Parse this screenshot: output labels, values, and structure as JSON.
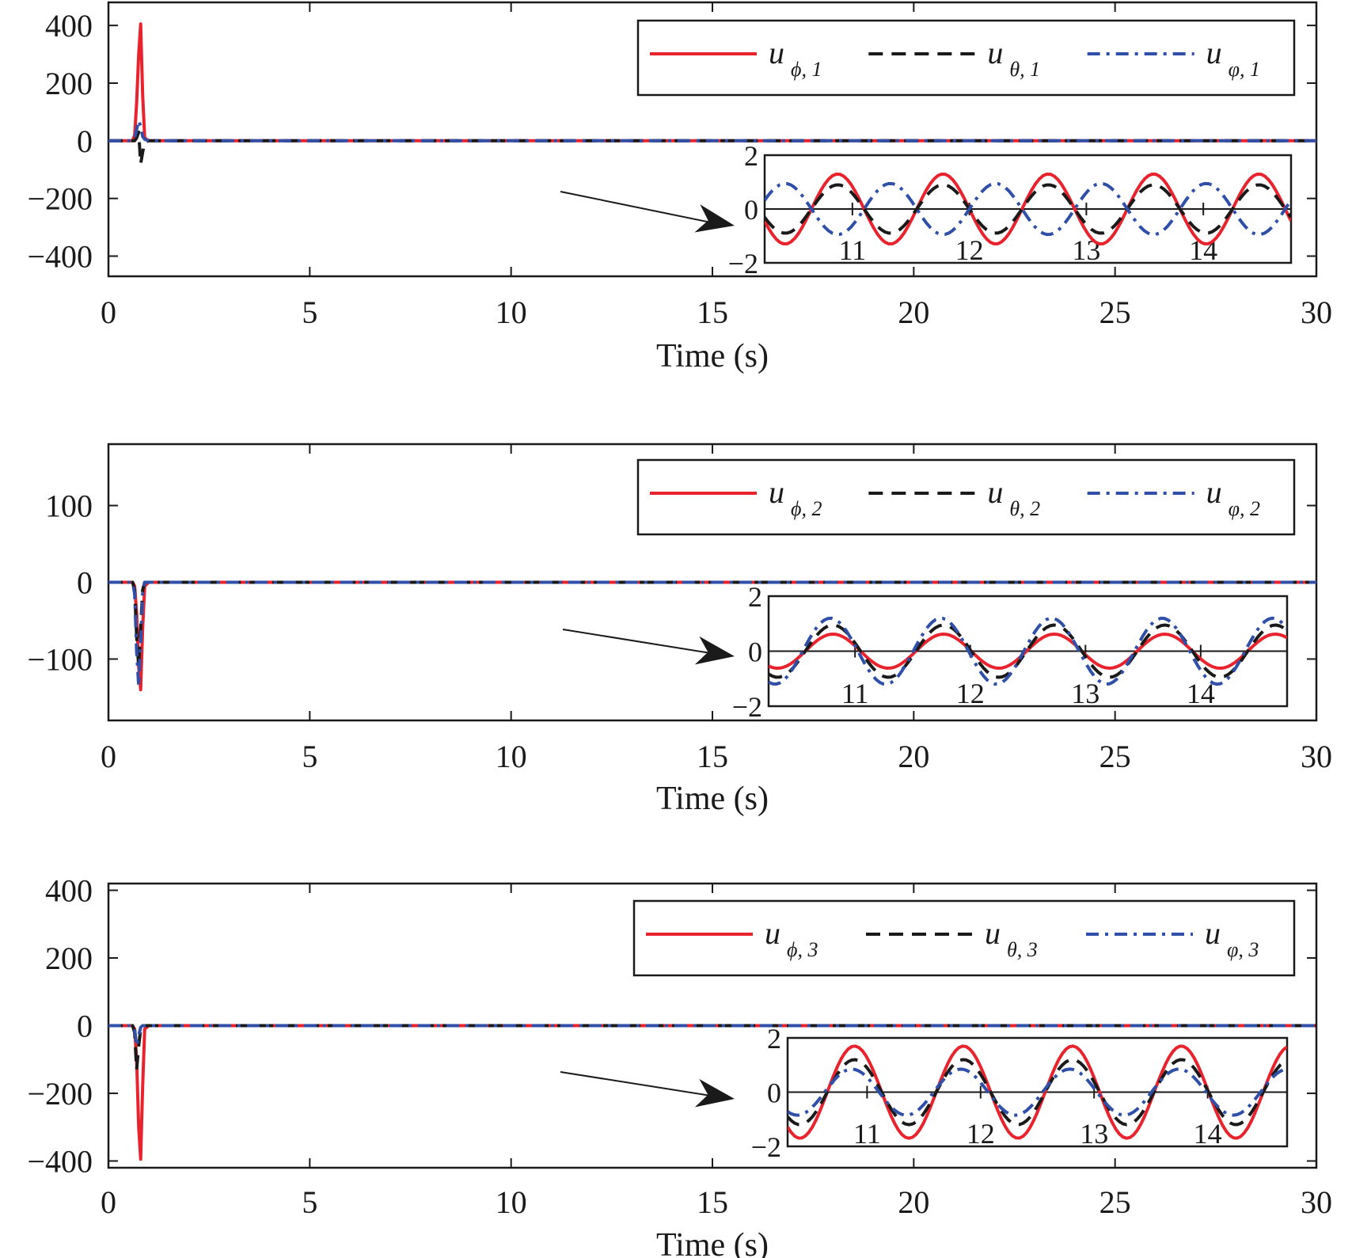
{
  "colors": {
    "u_phi": "#e8232e",
    "u_theta": "#1a1a1a",
    "u_varphi": "#2f4fa8",
    "axis": "#1a1a1a"
  },
  "chart_data": [
    {
      "type": "line",
      "xlabel": "Time (s)",
      "xlim": [
        0,
        30
      ],
      "ylim": [
        -470,
        480
      ],
      "xticks": [
        "0",
        "5",
        "10",
        "15",
        "20",
        "25",
        "30"
      ],
      "yticks": [
        "400",
        "200",
        "0",
        "−200",
        "−400"
      ],
      "ytick_values": [
        400,
        200,
        0,
        -200,
        -400
      ],
      "legend_position": "top-right",
      "series": [
        {
          "name": "u",
          "subscript": "ϕ, 1",
          "style": "solid",
          "color": "#e8232e",
          "x": [
            0,
            0.6,
            0.65,
            0.7,
            0.75,
            0.8,
            0.85,
            0.9,
            1.0,
            30
          ],
          "y": [
            0,
            0,
            20,
            130,
            300,
            405,
            160,
            10,
            0,
            0
          ]
        },
        {
          "name": "u",
          "subscript": "θ, 1",
          "style": "dashed",
          "color": "#1a1a1a",
          "x": [
            0,
            0.65,
            0.7,
            0.75,
            0.8,
            0.85,
            0.9,
            1.0,
            30
          ],
          "y": [
            0,
            0,
            10,
            30,
            -80,
            -40,
            -5,
            0,
            0
          ]
        },
        {
          "name": "u",
          "subscript": "φ, 1",
          "style": "dashdot",
          "color": "#2f4fa8",
          "x": [
            0,
            0.6,
            0.65,
            0.7,
            0.75,
            0.8,
            0.85,
            0.9,
            1.0,
            30
          ],
          "y": [
            0,
            0,
            10,
            40,
            70,
            50,
            15,
            5,
            0,
            0
          ]
        }
      ],
      "inset": {
        "xlim": [
          10.25,
          14.75
        ],
        "ylim": [
          -2,
          2
        ],
        "xticks": [
          "11",
          "12",
          "13",
          "14"
        ],
        "xtick_values": [
          11,
          12,
          13,
          14
        ],
        "yticks": [
          "2",
          "0",
          "−2"
        ],
        "ytick_values": [
          2,
          0,
          -2
        ],
        "period": 0.9,
        "series": [
          {
            "amplitude": 1.3,
            "phase": 3.4907,
            "color": "#e8232e",
            "style": "solid"
          },
          {
            "amplitude": 0.9,
            "phase": 3.4907,
            "color": "#1a1a1a",
            "style": "dashed"
          },
          {
            "amplitude": 0.95,
            "phase": 0.3491,
            "color": "#2f4fa8",
            "style": "dashdot"
          }
        ]
      }
    },
    {
      "type": "line",
      "xlabel": "Time (s)",
      "xlim": [
        0,
        30
      ],
      "ylim": [
        -180,
        180
      ],
      "xticks": [
        "0",
        "5",
        "10",
        "15",
        "20",
        "25",
        "30"
      ],
      "yticks": [
        "100",
        "0",
        "−100"
      ],
      "ytick_values": [
        100,
        0,
        -100
      ],
      "legend_position": "top-right",
      "series": [
        {
          "name": "u",
          "subscript": "ϕ, 2",
          "style": "solid",
          "color": "#e8232e",
          "x": [
            0,
            0.6,
            0.65,
            0.7,
            0.75,
            0.8,
            0.85,
            0.9,
            1.0,
            30
          ],
          "y": [
            0,
            0,
            -5,
            -40,
            -110,
            -140,
            -60,
            -5,
            0,
            0
          ]
        },
        {
          "name": "u",
          "subscript": "θ, 2",
          "style": "dashed",
          "color": "#1a1a1a",
          "x": [
            0,
            0.6,
            0.65,
            0.7,
            0.75,
            0.8,
            0.85,
            0.9,
            1.0,
            30
          ],
          "y": [
            0,
            0,
            -10,
            -70,
            -110,
            -60,
            -10,
            0,
            0,
            0
          ]
        },
        {
          "name": "u",
          "subscript": "φ, 2",
          "style": "dashdot",
          "color": "#2f4fa8",
          "x": [
            0,
            0.6,
            0.65,
            0.7,
            0.75,
            0.8,
            0.85,
            0.9,
            1.0,
            30
          ],
          "y": [
            0,
            0,
            -15,
            -90,
            -135,
            -80,
            -15,
            0,
            0,
            0
          ]
        }
      ],
      "inset": {
        "xlim": [
          10.25,
          14.75
        ],
        "ylim": [
          -2,
          2
        ],
        "xticks": [
          "11",
          "12",
          "13",
          "14"
        ],
        "xtick_values": [
          11,
          12,
          13,
          14
        ],
        "yticks": [
          "2",
          "0",
          "−2"
        ],
        "ytick_values": [
          2,
          0,
          -2
        ],
        "period": 0.96,
        "series": [
          {
            "amplitude": 0.62,
            "phase": 4.2,
            "color": "#e8232e",
            "style": "solid"
          },
          {
            "amplitude": 0.95,
            "phase": 4.2,
            "color": "#1a1a1a",
            "style": "dashed"
          },
          {
            "amplitude": 1.2,
            "phase": 4.35,
            "color": "#2f4fa8",
            "style": "dashdot"
          }
        ]
      }
    },
    {
      "type": "line",
      "xlabel": "Time (s)",
      "xlim": [
        0,
        30
      ],
      "ylim": [
        -420,
        420
      ],
      "xticks": [
        "0",
        "5",
        "10",
        "15",
        "20",
        "25",
        "30"
      ],
      "yticks": [
        "400",
        "200",
        "0",
        "−200",
        "−400"
      ],
      "ytick_values": [
        400,
        200,
        0,
        -200,
        -400
      ],
      "legend_position": "top-right",
      "series": [
        {
          "name": "u",
          "subscript": "ϕ, 3",
          "style": "solid",
          "color": "#e8232e",
          "x": [
            0,
            0.6,
            0.65,
            0.7,
            0.75,
            0.8,
            0.85,
            0.9,
            1.0,
            30
          ],
          "y": [
            0,
            0,
            -10,
            -100,
            -300,
            -395,
            -180,
            -10,
            0,
            0
          ]
        },
        {
          "name": "u",
          "subscript": "θ, 3",
          "style": "dashed",
          "color": "#1a1a1a",
          "x": [
            0,
            0.6,
            0.65,
            0.7,
            0.75,
            0.8,
            0.85,
            0.9,
            1.0,
            30
          ],
          "y": [
            0,
            0,
            -20,
            -130,
            -60,
            -10,
            0,
            0,
            0,
            0
          ]
        },
        {
          "name": "u",
          "subscript": "φ, 3",
          "style": "dashdot",
          "color": "#2f4fa8",
          "x": [
            0,
            0.6,
            0.65,
            0.7,
            0.75,
            0.8,
            0.85,
            0.9,
            1.0,
            30
          ],
          "y": [
            0,
            0,
            -10,
            -60,
            -30,
            -5,
            0,
            0,
            0,
            0
          ]
        }
      ],
      "inset": {
        "xlim": [
          10.3,
          14.7
        ],
        "ylim": [
          -2,
          2
        ],
        "xticks": [
          "11",
          "12",
          "13",
          "14"
        ],
        "xtick_values": [
          11,
          12,
          13,
          14
        ],
        "yticks": [
          "2",
          "0",
          "−2"
        ],
        "ytick_values": [
          2,
          0,
          -2
        ],
        "period": 0.96,
        "series": [
          {
            "amplitude": 1.7,
            "phase": 4.0,
            "color": "#e8232e",
            "style": "solid"
          },
          {
            "amplitude": 1.2,
            "phase": 4.0,
            "color": "#1a1a1a",
            "style": "dashed"
          },
          {
            "amplitude": 0.85,
            "phase": 4.15,
            "color": "#2f4fa8",
            "style": "dashdot"
          }
        ]
      }
    }
  ]
}
